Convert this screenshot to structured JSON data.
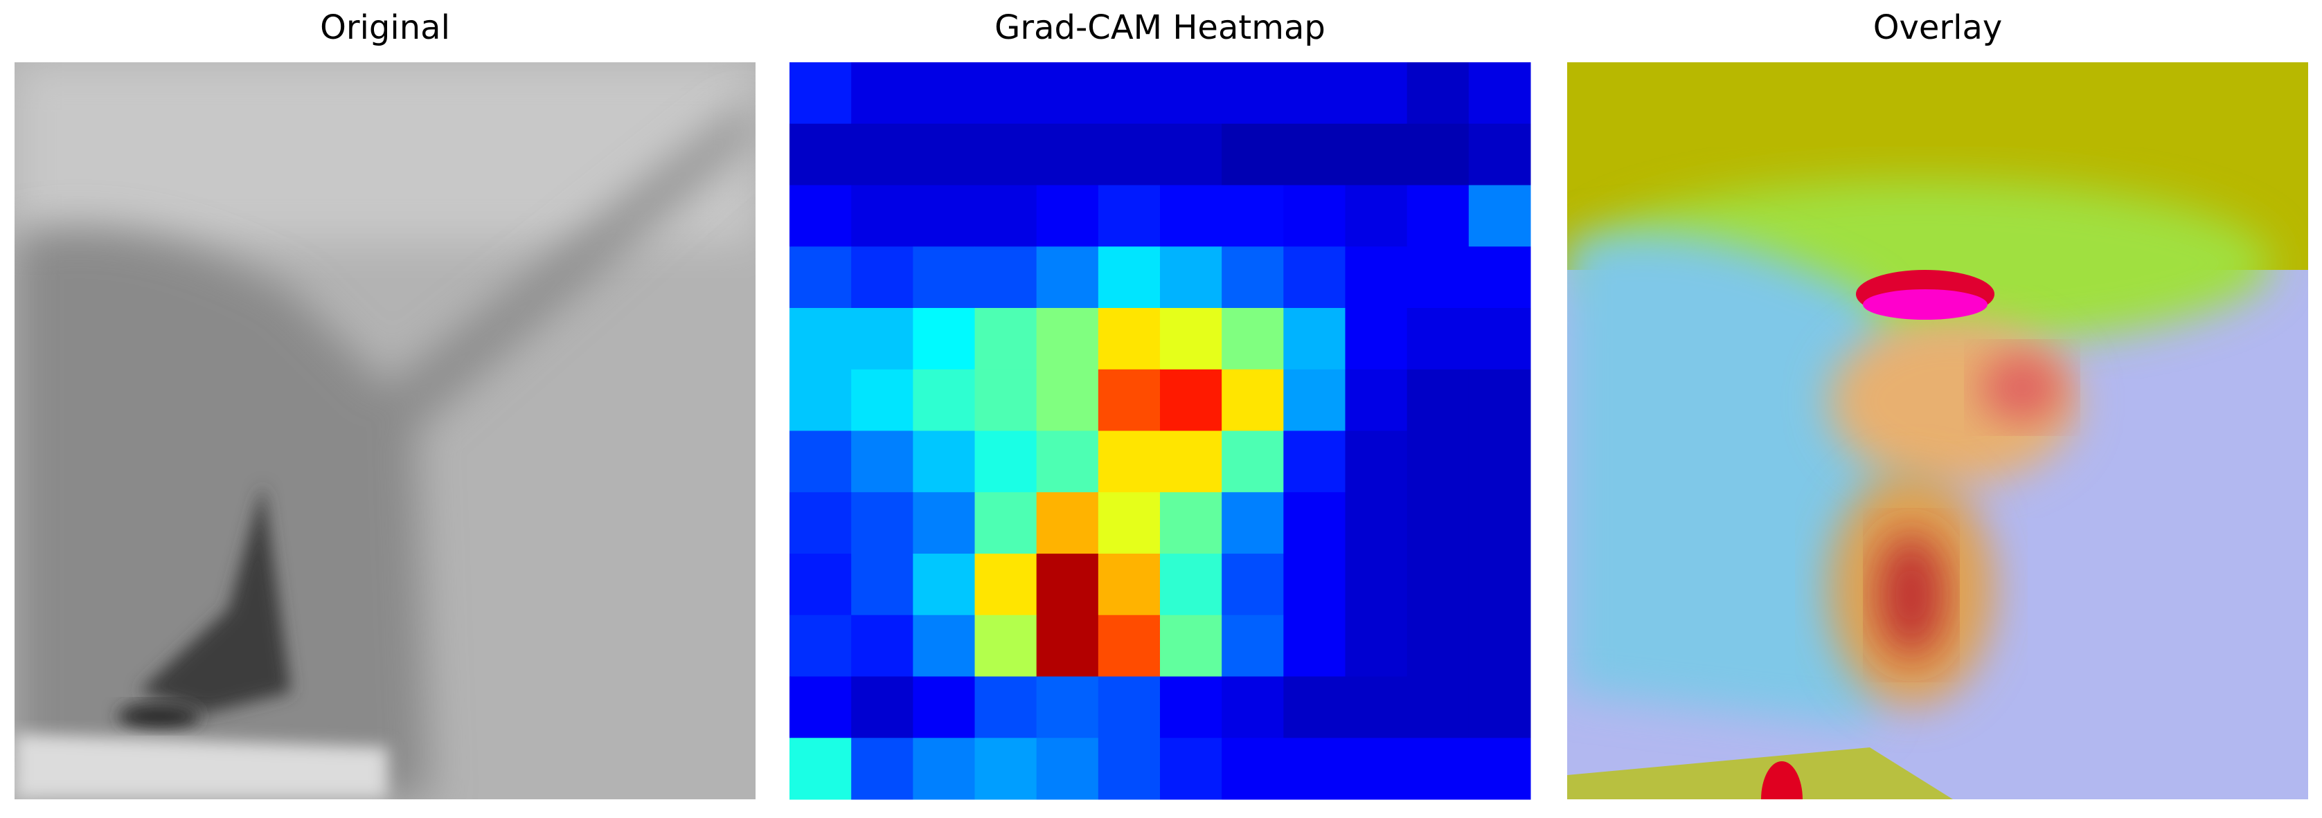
{
  "panels": [
    {
      "title": "Original"
    },
    {
      "title": "Grad-CAM Heatmap"
    },
    {
      "title": "Overlay"
    }
  ],
  "heatmap": {
    "values": [
      [
        0.15,
        0.1,
        0.1,
        0.1,
        0.1,
        0.1,
        0.1,
        0.1,
        0.1,
        0.1,
        0.07,
        0.1
      ],
      [
        0.07,
        0.07,
        0.07,
        0.07,
        0.07,
        0.07,
        0.07,
        0.05,
        0.05,
        0.05,
        0.05,
        0.07
      ],
      [
        0.12,
        0.1,
        0.1,
        0.1,
        0.12,
        0.15,
        0.13,
        0.13,
        0.12,
        0.1,
        0.12,
        0.25
      ],
      [
        0.2,
        0.17,
        0.2,
        0.2,
        0.25,
        0.35,
        0.3,
        0.22,
        0.17,
        0.12,
        0.12,
        0.12
      ],
      [
        0.32,
        0.32,
        0.37,
        0.45,
        0.5,
        0.65,
        0.6,
        0.5,
        0.3,
        0.12,
        0.1,
        0.1
      ],
      [
        0.32,
        0.35,
        0.42,
        0.45,
        0.5,
        0.8,
        0.85,
        0.65,
        0.28,
        0.1,
        0.07,
        0.07
      ],
      [
        0.2,
        0.25,
        0.32,
        0.4,
        0.45,
        0.65,
        0.65,
        0.45,
        0.15,
        0.08,
        0.07,
        0.07
      ],
      [
        0.17,
        0.2,
        0.25,
        0.45,
        0.7,
        0.6,
        0.47,
        0.25,
        0.12,
        0.08,
        0.07,
        0.07
      ],
      [
        0.15,
        0.2,
        0.32,
        0.65,
        0.95,
        0.7,
        0.42,
        0.2,
        0.12,
        0.08,
        0.07,
        0.07
      ],
      [
        0.17,
        0.15,
        0.25,
        0.55,
        0.95,
        0.8,
        0.47,
        0.22,
        0.12,
        0.08,
        0.07,
        0.07
      ],
      [
        0.12,
        0.08,
        0.12,
        0.2,
        0.22,
        0.2,
        0.12,
        0.1,
        0.07,
        0.07,
        0.07,
        0.07
      ],
      [
        0.4,
        0.2,
        0.25,
        0.28,
        0.25,
        0.2,
        0.15,
        0.12,
        0.12,
        0.12,
        0.12,
        0.12
      ]
    ]
  }
}
